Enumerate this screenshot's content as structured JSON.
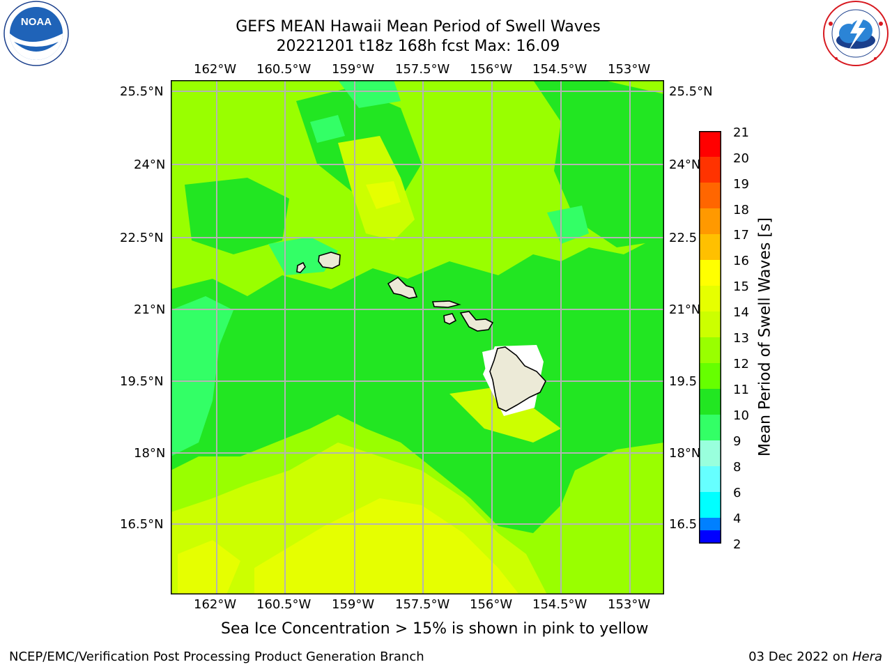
{
  "title": {
    "line1": "GEFS MEAN Hawaii Mean Period of Swell Waves",
    "line2": "20221201 t18z 168h fcst   Max: 16.09"
  },
  "logos": {
    "noaa": {
      "text": "NOAA",
      "ring_text": "NATIONAL OCEANIC AND ATMOSPHERIC ADMINISTRATION · U.S. DEPARTMENT OF COMMERCE"
    },
    "nws": {
      "ring_text": "NATIONAL WEATHER SERVICE"
    }
  },
  "map": {
    "lon_ticks": [
      "162°W",
      "160.5°W",
      "159°W",
      "157.5°W",
      "156°W",
      "154.5°W",
      "153°W"
    ],
    "lat_ticks": [
      "25.5°N",
      "24°N",
      "22.5°N",
      "21°N",
      "19.5°N",
      "18°N",
      "16.5°N"
    ],
    "lat_ticks_right": [
      "25.5°N",
      "24°N",
      "22.5",
      "21°N",
      "19.5",
      "18°N",
      "16.5"
    ],
    "islands": [
      "Kauai",
      "Niihau",
      "Oahu",
      "Molokai",
      "Lanai",
      "Maui",
      "Hawaii"
    ]
  },
  "colorbar": {
    "label": "Mean Period of Swell Waves [s]",
    "ticks": [
      "21",
      "20",
      "19",
      "18",
      "17",
      "16",
      "15",
      "14",
      "13",
      "12",
      "11",
      "10",
      "9",
      "8",
      "6",
      "4",
      "2"
    ],
    "colors": [
      "#ff0000",
      "#ff3300",
      "#ff6600",
      "#ff9900",
      "#ffc000",
      "#ffff00",
      "#e6ff00",
      "#ccff00",
      "#99ff00",
      "#66ff00",
      "#22e622",
      "#33ff66",
      "#99ffdd",
      "#66ffff",
      "#00ffff",
      "#0080ff",
      "#0000ff"
    ]
  },
  "caption": "Sea Ice Concentration > 15% is shown in pink to yellow",
  "footer": {
    "left": "NCEP/EMC/Verification Post Processing Product Generation Branch",
    "right_prefix": "03 Dec 2022 on ",
    "right_host": "Hera"
  }
}
